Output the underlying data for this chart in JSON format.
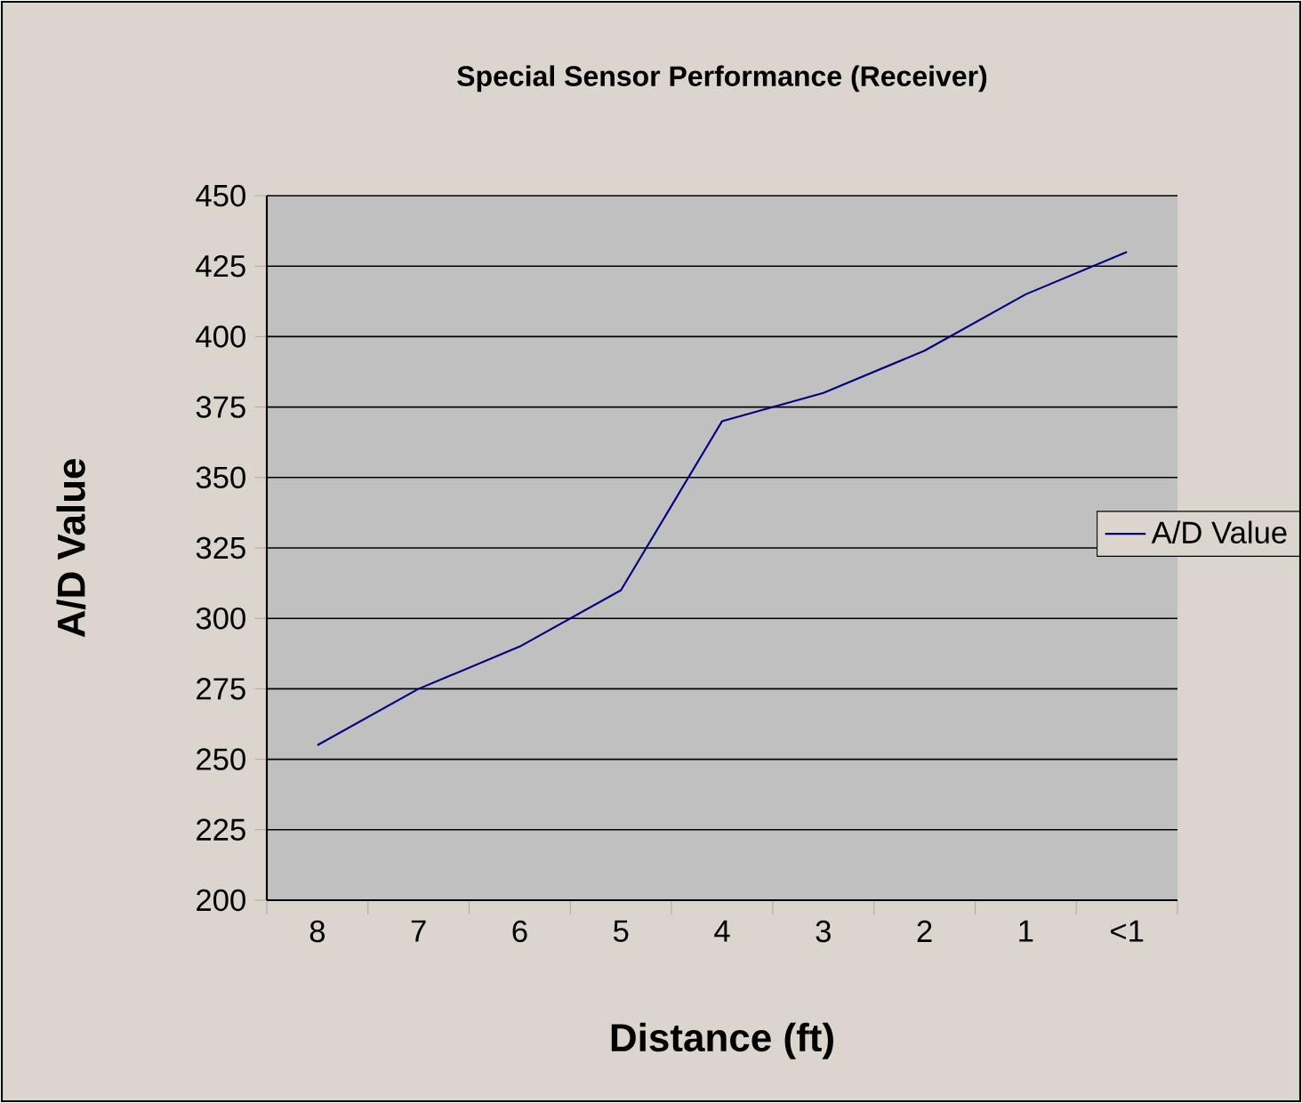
{
  "chart_data": {
    "type": "line",
    "title": "Special Sensor Performance (Receiver)",
    "xlabel": "Distance (ft)",
    "ylabel": "A/D Value",
    "categories": [
      "8",
      "7",
      "6",
      "5",
      "4",
      "3",
      "2",
      "1",
      "<1"
    ],
    "series": [
      {
        "name": "A/D Value",
        "color": "#000080",
        "values": [
          255,
          275,
          290,
          310,
          370,
          380,
          395,
          415,
          430
        ]
      }
    ],
    "ylim": [
      200,
      450
    ],
    "yticks": [
      200,
      225,
      250,
      275,
      300,
      325,
      350,
      375,
      400,
      425,
      450
    ],
    "grid": "y",
    "legend": "right"
  }
}
